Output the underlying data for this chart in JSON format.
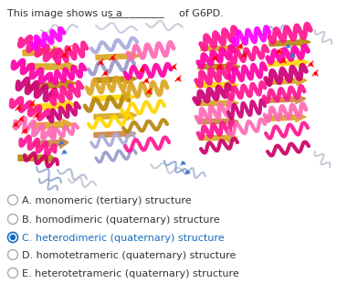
{
  "title_text": "This image shows us a",
  "title_underline": "___________",
  "title_suffix": "of G6PD.",
  "options": [
    {
      "label": "A. monomeric (tertiary) structure",
      "selected": false
    },
    {
      "label": "B. homodimeric (quaternary) structure",
      "selected": false
    },
    {
      "label": "C. heterodimeric (quaternary) structure",
      "selected": true
    },
    {
      "label": "D. homotetrameric (quaternary) structure",
      "selected": false
    },
    {
      "label": "E. heterotetrameric (quaternary) structure",
      "selected": false
    }
  ],
  "bg_color": "#ffffff",
  "text_color": "#333333",
  "selected_color": "#1a6bbf",
  "unselected_color": "#aaaaaa",
  "title_fontsize": 8,
  "option_fontsize": 8,
  "fig_width": 3.69,
  "fig_height": 3.33,
  "dpi": 100
}
